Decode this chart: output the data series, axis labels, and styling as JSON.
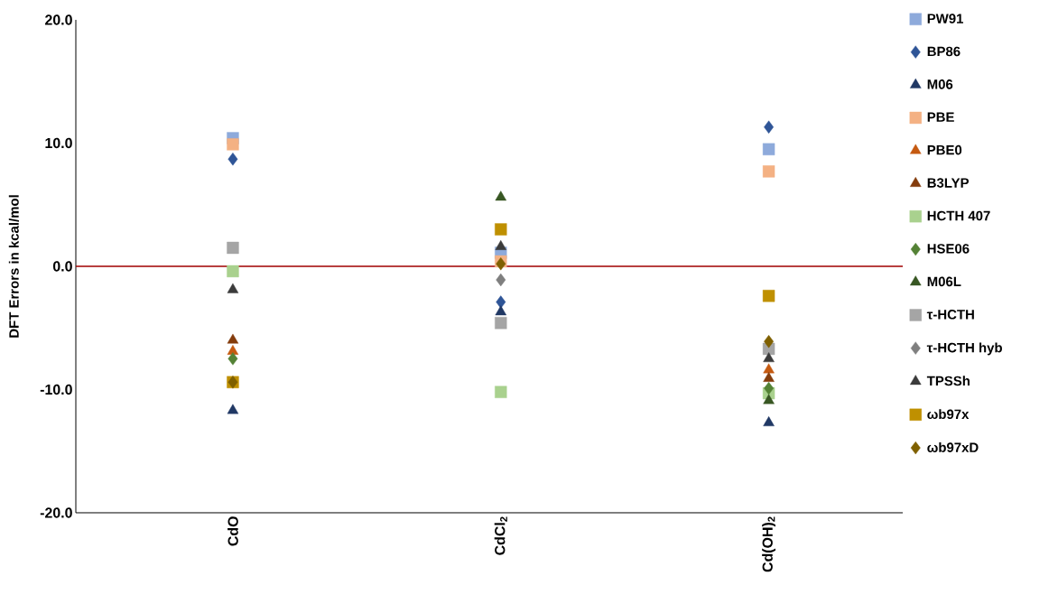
{
  "chart_data": {
    "type": "scatter",
    "ylabel": "DFT Errors in kcal/mol",
    "categories": [
      "CdO",
      "CdCl$_{2}$",
      "Cd(OH)$_{2}$"
    ],
    "ylim": [
      -20,
      20
    ],
    "yticks": [
      {
        "value": -20,
        "label": "-20.0"
      },
      {
        "value": -10,
        "label": "-10.0"
      },
      {
        "value": 0,
        "label": "0.0"
      },
      {
        "value": 10,
        "label": "10.0"
      },
      {
        "value": 20,
        "label": "20.0"
      }
    ],
    "grid": false,
    "legend": "right",
    "ref_lines": [
      {
        "axis": "y",
        "value": 0,
        "color": "#a00000"
      }
    ],
    "series": [
      {
        "name": "PW91",
        "color": "#8eaadb",
        "marker": "square",
        "values": [
          10.4,
          1.1,
          9.5
        ]
      },
      {
        "name": "BP86",
        "color": "#2f5597",
        "marker": "diamond",
        "values": [
          8.7,
          -2.9,
          11.3
        ]
      },
      {
        "name": "M06",
        "color": "#203864",
        "marker": "triangle",
        "values": [
          -11.7,
          -3.7,
          -12.7
        ]
      },
      {
        "name": "PBE",
        "color": "#f4b183",
        "marker": "square",
        "values": [
          9.9,
          0.4,
          7.7
        ]
      },
      {
        "name": "PBE0",
        "color": "#c55a11",
        "marker": "triangle",
        "values": [
          -6.9,
          null,
          -8.4
        ]
      },
      {
        "name": "B3LYP",
        "color": "#843c0c",
        "marker": "triangle",
        "values": [
          -6.0,
          null,
          -9.1
        ]
      },
      {
        "name": "HCTH 407",
        "color": "#a9d18e",
        "marker": "square",
        "values": [
          -0.4,
          -10.2,
          -10.3
        ]
      },
      {
        "name": "HSE06",
        "color": "#548235",
        "marker": "diamond",
        "values": [
          -7.5,
          null,
          -9.9
        ]
      },
      {
        "name": "M06L",
        "color": "#385723",
        "marker": "triangle",
        "values": [
          null,
          5.6,
          -10.9
        ]
      },
      {
        "name": "τ-HCTH",
        "color": "#a5a5a5",
        "marker": "square",
        "values": [
          1.5,
          -4.6,
          -6.7
        ]
      },
      {
        "name": "τ-HCTH hyb",
        "color": "#7f7f7f",
        "marker": "diamond",
        "values": [
          null,
          -1.1,
          null
        ]
      },
      {
        "name": "TPSSh",
        "color": "#3b3b3b",
        "marker": "triangle",
        "values": [
          -1.9,
          1.6,
          -7.5
        ]
      },
      {
        "name": "ωb97x",
        "color": "#bf9000",
        "marker": "square",
        "values": [
          -9.4,
          3.0,
          -2.4
        ]
      },
      {
        "name": "ωb97xD",
        "color": "#7f6000",
        "marker": "diamond",
        "values": [
          -9.4,
          0.2,
          -6.1
        ]
      }
    ]
  }
}
